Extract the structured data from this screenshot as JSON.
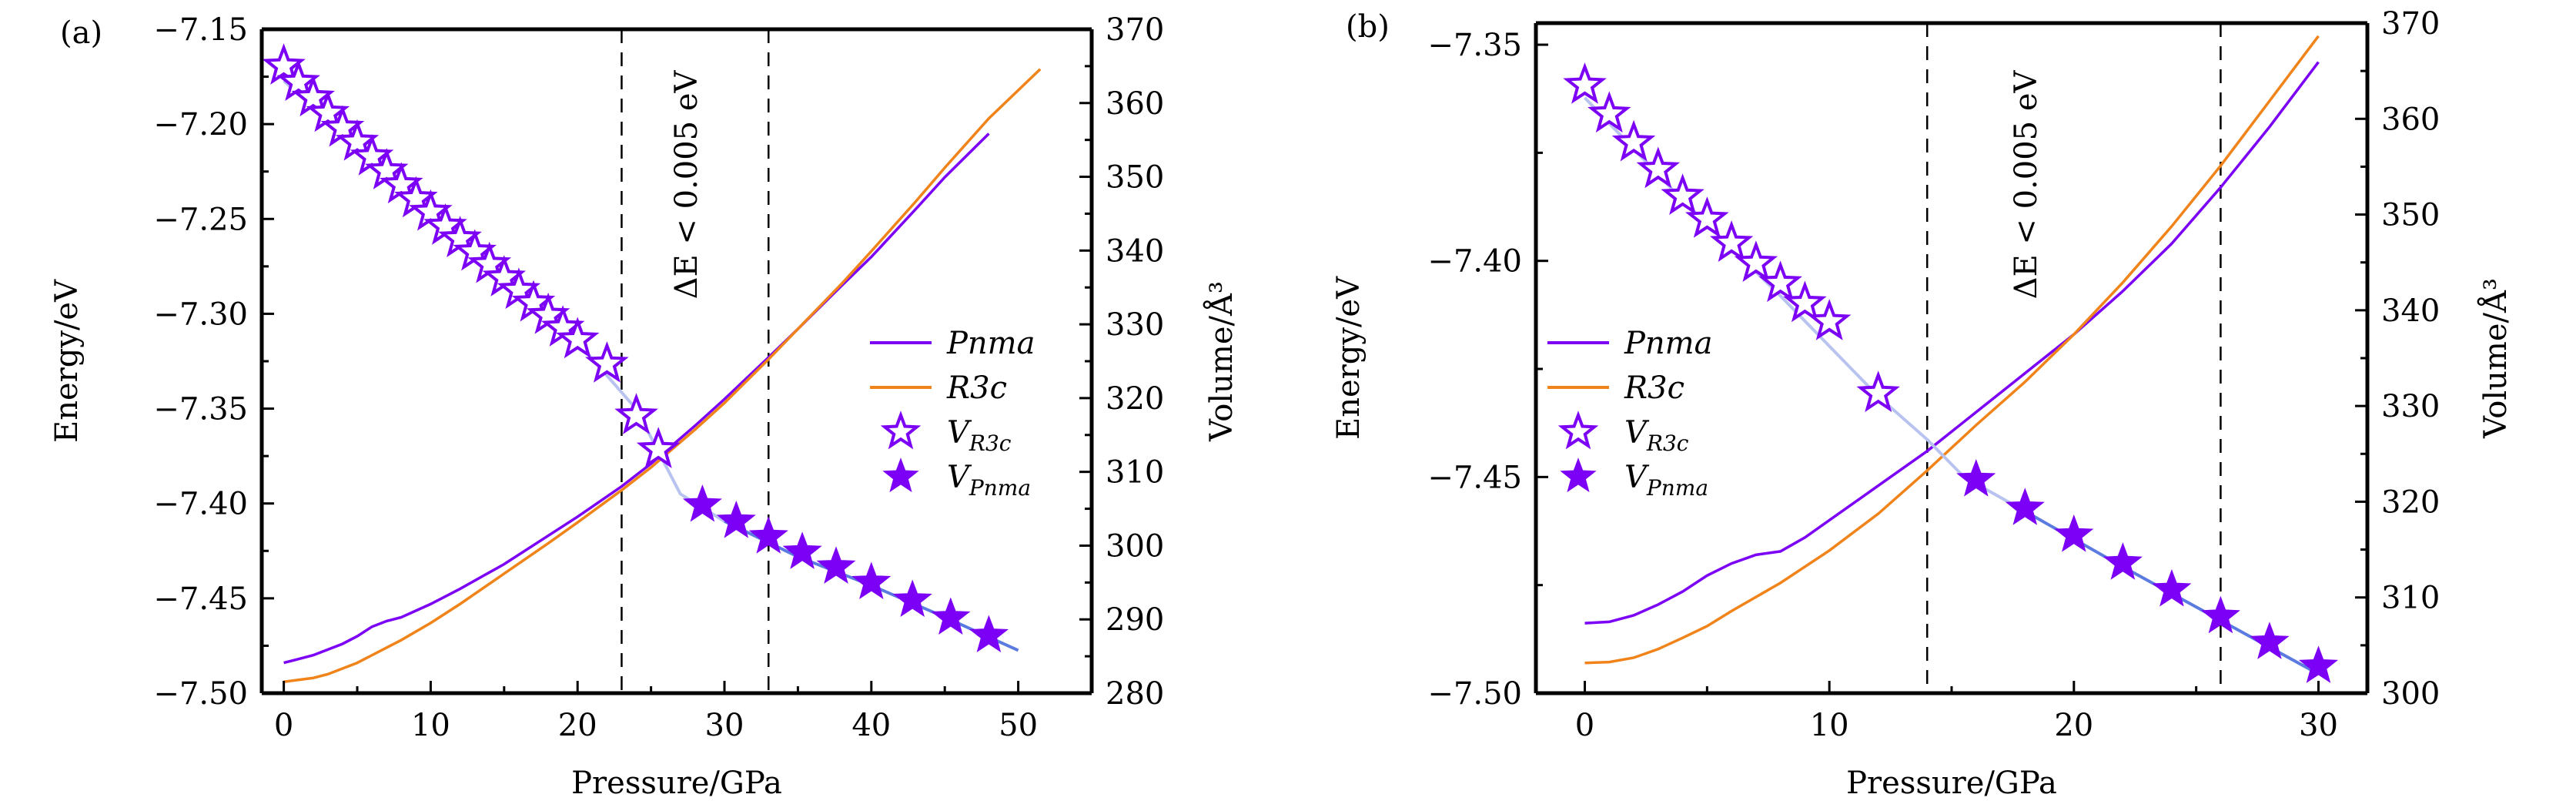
{
  "colors": {
    "pnma": "#7b00f5",
    "r3c": "#f0841a",
    "fit_light": "#b8c3f0",
    "fit_dark": "#5b7be0",
    "axis": "#000000"
  },
  "chart_data": [
    {
      "type": "line",
      "panel_label": "(a)",
      "xlabel": "Pressure/GPa",
      "ylabel": "Energy/eV",
      "y2label": "Volume/Å³",
      "xlim": [
        -1.5,
        55
      ],
      "ylim": [
        -7.5,
        -7.15
      ],
      "y2lim": [
        280,
        370
      ],
      "xticks": [
        "0",
        "10",
        "20",
        "30",
        "40",
        "50"
      ],
      "yticks": [
        "−7.50",
        "−7.45",
        "−7.40",
        "−7.35",
        "−7.30",
        "−7.25",
        "−7.20",
        "−7.15"
      ],
      "y2ticks": [
        "280",
        "290",
        "300",
        "310",
        "320",
        "330",
        "340",
        "350",
        "360",
        "370"
      ],
      "grid": false,
      "legend_position": "center-right",
      "legend": [
        "Pnma",
        "R3c",
        "V_R3c",
        "V_Pnma"
      ],
      "vlines": [
        23,
        33
      ],
      "annotation": "ΔE < 0.005 eV",
      "series": [
        {
          "name": "Pnma",
          "axis": "left",
          "kind": "line",
          "x": [
            0,
            1,
            2,
            3,
            4,
            5,
            6,
            7,
            8,
            10,
            12,
            15,
            18,
            20,
            23,
            25,
            28,
            30,
            33,
            35,
            38,
            40,
            43,
            45,
            48
          ],
          "y": [
            -7.484,
            -7.482,
            -7.48,
            -7.477,
            -7.474,
            -7.47,
            -7.465,
            -7.462,
            -7.46,
            -7.453,
            -7.445,
            -7.432,
            -7.417,
            -7.407,
            -7.391,
            -7.379,
            -7.359,
            -7.345,
            -7.323,
            -7.308,
            -7.285,
            -7.27,
            -7.245,
            -7.228,
            -7.205
          ]
        },
        {
          "name": "R3c",
          "axis": "left",
          "kind": "line",
          "x": [
            0,
            1,
            2,
            3,
            4,
            5,
            6,
            8,
            10,
            12,
            15,
            18,
            20,
            23,
            25,
            28,
            30,
            33,
            35,
            38,
            40,
            43,
            45,
            48,
            51.5
          ],
          "y": [
            -7.494,
            -7.493,
            -7.492,
            -7.49,
            -7.487,
            -7.484,
            -7.48,
            -7.472,
            -7.463,
            -7.453,
            -7.437,
            -7.421,
            -7.41,
            -7.393,
            -7.381,
            -7.361,
            -7.347,
            -7.324,
            -7.308,
            -7.284,
            -7.267,
            -7.241,
            -7.223,
            -7.197,
            -7.171
          ]
        },
        {
          "name": "V_R3c",
          "axis": "right",
          "kind": "open-star",
          "x": [
            0,
            1,
            2,
            3,
            4,
            5,
            6,
            7,
            8,
            9,
            10,
            11,
            12,
            13,
            14,
            15,
            16,
            17,
            18,
            19,
            20,
            22,
            24,
            25.5
          ],
          "y": [
            365.0,
            362.8,
            360.7,
            358.6,
            356.6,
            354.7,
            352.7,
            350.8,
            348.9,
            347.0,
            345.2,
            343.3,
            341.6,
            339.8,
            338.1,
            336.3,
            334.6,
            332.9,
            331.2,
            329.5,
            327.9,
            324.6,
            317.6,
            313.0
          ]
        },
        {
          "name": "V_Pnma",
          "axis": "right",
          "kind": "filled-star",
          "x": [
            28.5,
            30.8,
            33,
            35.3,
            37.6,
            40,
            42.8,
            45.4,
            48
          ],
          "y": [
            305.5,
            303.3,
            301.2,
            299.1,
            297.1,
            295.0,
            292.6,
            290.2,
            287.8
          ]
        },
        {
          "name": "V_fit",
          "axis": "right",
          "kind": "fit-line",
          "x": [
            0,
            5,
            10,
            15,
            20,
            24,
            27,
            30,
            35,
            40,
            45,
            50
          ],
          "y": [
            363,
            354,
            345,
            336.4,
            327.6,
            318.5,
            307.0,
            303.3,
            298.5,
            294.6,
            290.3,
            285.8
          ]
        }
      ]
    },
    {
      "type": "line",
      "panel_label": "(b)",
      "xlabel": "Pressure/GPa",
      "ylabel": "Energy/eV",
      "y2label": "Volume/Å³",
      "xlim": [
        -2,
        32
      ],
      "ylim": [
        -7.5,
        -7.345
      ],
      "y2lim": [
        300,
        370
      ],
      "xticks": [
        "0",
        "10",
        "20",
        "30"
      ],
      "yticks": [
        "−7.50",
        "−7.45",
        "−7.40",
        "−7.35"
      ],
      "y2ticks": [
        "300",
        "310",
        "320",
        "330",
        "340",
        "350",
        "360",
        "370"
      ],
      "grid": false,
      "legend_position": "center-left",
      "legend": [
        "Pnma",
        "R3c",
        "V_R3c",
        "V_Pnma"
      ],
      "vlines": [
        14,
        26
      ],
      "annotation": "ΔE < 0.005 eV",
      "series": [
        {
          "name": "Pnma",
          "axis": "left",
          "kind": "line",
          "x": [
            0,
            1,
            2,
            3,
            4,
            5,
            6,
            7,
            8,
            9,
            10,
            12,
            14,
            16,
            18,
            20,
            22,
            24,
            26,
            28,
            30
          ],
          "y": [
            -7.4838,
            -7.4835,
            -7.482,
            -7.4795,
            -7.4765,
            -7.4728,
            -7.47,
            -7.468,
            -7.4672,
            -7.464,
            -7.46,
            -7.452,
            -7.444,
            -7.435,
            -7.426,
            -7.417,
            -7.407,
            -7.396,
            -7.383,
            -7.369,
            -7.354
          ]
        },
        {
          "name": "R3c",
          "axis": "left",
          "kind": "line",
          "x": [
            0,
            1,
            2,
            3,
            4,
            5,
            6,
            8,
            10,
            12,
            14,
            16,
            18,
            20,
            22,
            24,
            26,
            28,
            30
          ],
          "y": [
            -7.493,
            -7.4928,
            -7.4918,
            -7.4898,
            -7.4872,
            -7.4845,
            -7.481,
            -7.4745,
            -7.467,
            -7.4585,
            -7.4485,
            -7.438,
            -7.428,
            -7.417,
            -7.405,
            -7.392,
            -7.378,
            -7.363,
            -7.348
          ]
        },
        {
          "name": "V_R3c",
          "axis": "right",
          "kind": "open-star",
          "x": [
            0,
            1,
            2,
            3,
            4,
            5,
            6,
            7,
            8,
            9,
            10,
            12
          ],
          "y": [
            363.5,
            360.5,
            357.5,
            354.7,
            351.9,
            349.5,
            347.0,
            344.9,
            342.8,
            340.7,
            338.8,
            331.3
          ]
        },
        {
          "name": "V_Pnma",
          "axis": "right",
          "kind": "filled-star",
          "x": [
            16,
            18,
            20,
            22,
            24,
            26,
            28,
            30
          ],
          "y": [
            322.3,
            319.3,
            316.5,
            313.6,
            310.8,
            308.0,
            305.3,
            302.8
          ]
        },
        {
          "name": "V_fit",
          "axis": "right",
          "kind": "fit-line",
          "x": [
            0,
            4,
            8,
            12,
            14,
            15.5,
            18,
            22,
            26,
            30
          ],
          "y": [
            362.2,
            351.5,
            341.5,
            331.0,
            326.5,
            322.6,
            319.0,
            313.2,
            307.6,
            302.0
          ]
        }
      ]
    }
  ]
}
